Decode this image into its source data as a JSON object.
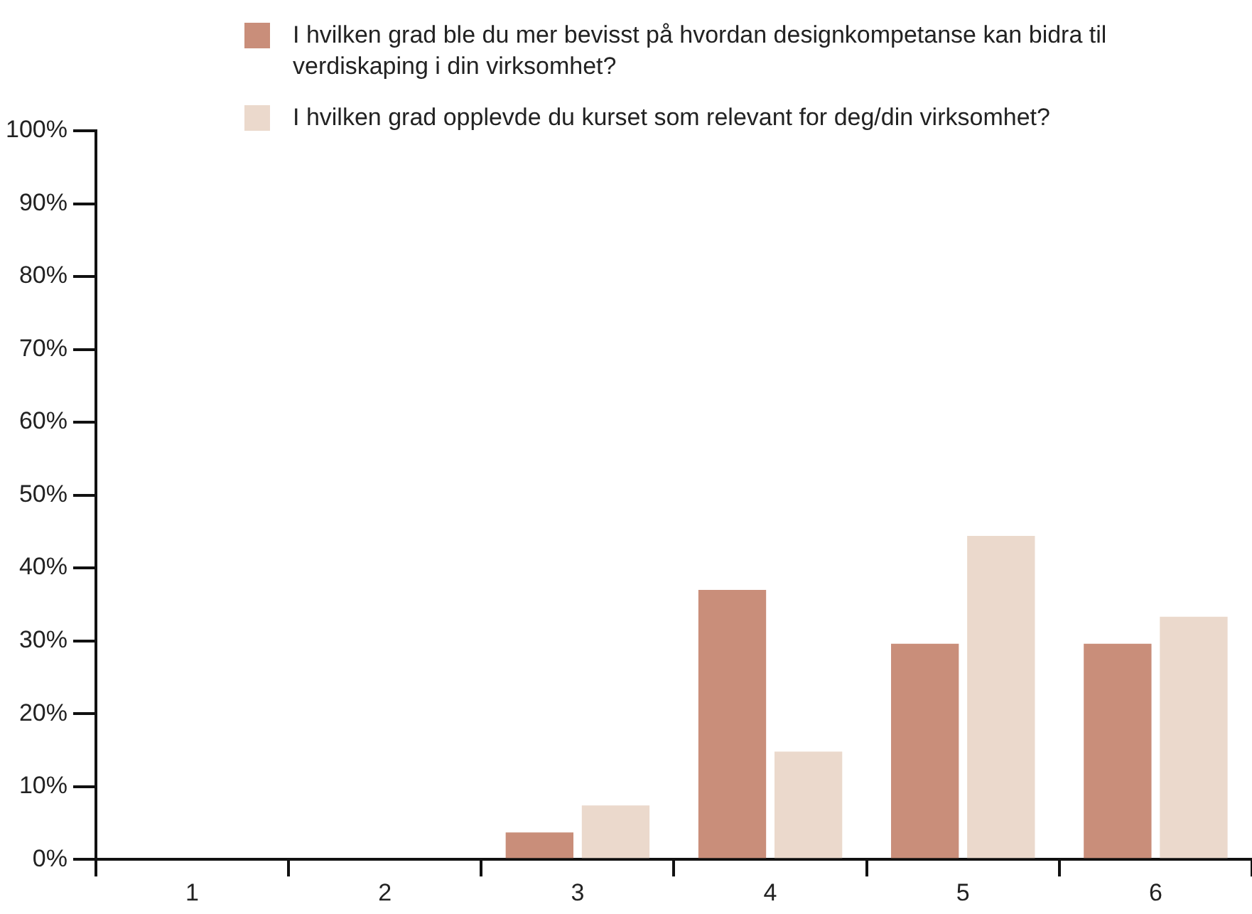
{
  "chart_data": {
    "type": "bar",
    "categories": [
      "1",
      "2",
      "3",
      "4",
      "5",
      "6"
    ],
    "series": [
      {
        "name": "I hvilken grad ble du mer bevisst på hvordan designkompetanse kan bidra til verdiskaping i din virksomhet?",
        "color": "#c98e7a",
        "values": [
          0,
          0,
          3.7,
          37,
          29.6,
          29.6
        ]
      },
      {
        "name": "I hvilken grad opplevde du kurset som relevant for deg/din virksomhet?",
        "color": "#ebd9cc",
        "values": [
          0,
          0,
          7.4,
          14.8,
          44.4,
          33.3
        ]
      }
    ],
    "ylim": [
      0,
      100
    ],
    "yticks": [
      {
        "value": 0,
        "label": "0%"
      },
      {
        "value": 10,
        "label": "10%"
      },
      {
        "value": 20,
        "label": "20%"
      },
      {
        "value": 30,
        "label": "30%"
      },
      {
        "value": 40,
        "label": "40%"
      },
      {
        "value": 50,
        "label": "50%"
      },
      {
        "value": 60,
        "label": "60%"
      },
      {
        "value": 70,
        "label": "70%"
      },
      {
        "value": 80,
        "label": "80%"
      },
      {
        "value": 90,
        "label": "90%"
      },
      {
        "value": 100,
        "label": "100%"
      }
    ],
    "grid": false,
    "legend": "top"
  }
}
